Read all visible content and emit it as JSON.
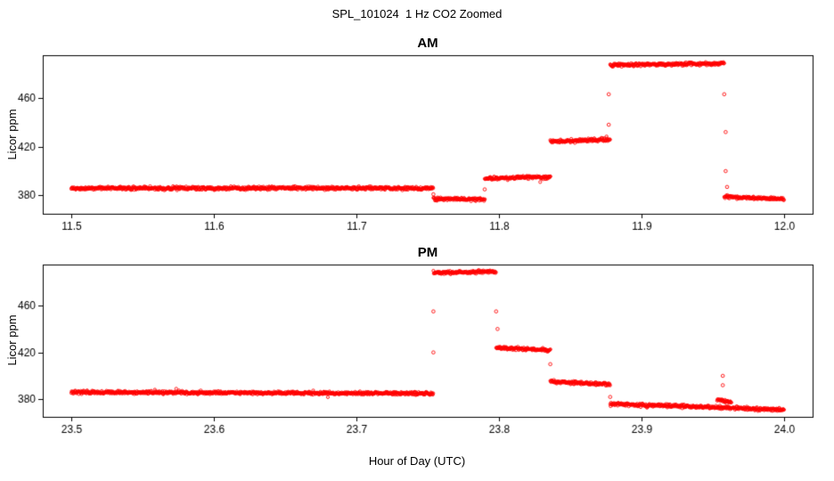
{
  "title": "SPL_101024  1 Hz CO2 Zoomed",
  "xlabel": "Hour of Day (UTC)",
  "ylabel": "Licor ppm",
  "chart_data": [
    {
      "type": "scatter",
      "panel": "AM",
      "title": "AM",
      "ylabel": "Licor ppm",
      "point_color": "#ff0000",
      "point_style": "open-circle",
      "sample_rate_hz": 1,
      "xlim": [
        11.48,
        12.02
      ],
      "ylim": [
        365,
        495
      ],
      "xticks": [
        11.5,
        11.6,
        11.7,
        11.8,
        11.9,
        12.0
      ],
      "xtick_labels": [
        "11.5",
        "11.6",
        "11.7",
        "11.8",
        "11.9",
        "12.0"
      ],
      "yticks": [
        380,
        420,
        460
      ],
      "ytick_labels": [
        "380",
        "420",
        "460"
      ],
      "grid": false,
      "segments": [
        {
          "x0": 11.5,
          "x1": 11.754,
          "y0": 386,
          "y1": 386
        },
        {
          "x0": 11.754,
          "x1": 11.79,
          "y0": 377,
          "y1": 377
        },
        {
          "x0": 11.79,
          "x1": 11.836,
          "y0": 394,
          "y1": 395
        },
        {
          "x0": 11.836,
          "x1": 11.878,
          "y0": 424,
          "y1": 426
        },
        {
          "x0": 11.878,
          "x1": 11.958,
          "y0": 487,
          "y1": 488
        },
        {
          "x0": 11.958,
          "x1": 12.0,
          "y0": 379,
          "y1": 377
        }
      ],
      "extra_points": [
        [
          11.754,
          381
        ],
        [
          11.79,
          385
        ],
        [
          11.877,
          438
        ],
        [
          11.877,
          463
        ],
        [
          11.958,
          463
        ],
        [
          11.959,
          432
        ],
        [
          11.959,
          400
        ],
        [
          11.96,
          387
        ]
      ]
    },
    {
      "type": "scatter",
      "panel": "PM",
      "title": "PM",
      "ylabel": "Licor ppm",
      "point_color": "#ff0000",
      "point_style": "open-circle",
      "sample_rate_hz": 1,
      "xlim": [
        23.48,
        24.02
      ],
      "ylim": [
        365,
        495
      ],
      "xticks": [
        23.5,
        23.6,
        23.7,
        23.8,
        23.9,
        24.0
      ],
      "xtick_labels": [
        "23.5",
        "23.6",
        "23.7",
        "23.8",
        "23.9",
        "24.0"
      ],
      "yticks": [
        380,
        420,
        460
      ],
      "ytick_labels": [
        "380",
        "420",
        "460"
      ],
      "grid": false,
      "segments": [
        {
          "x0": 23.5,
          "x1": 23.754,
          "y0": 386,
          "y1": 385
        },
        {
          "x0": 23.754,
          "x1": 23.798,
          "y0": 488,
          "y1": 489
        },
        {
          "x0": 23.798,
          "x1": 23.836,
          "y0": 424,
          "y1": 422
        },
        {
          "x0": 23.836,
          "x1": 23.878,
          "y0": 395,
          "y1": 393
        },
        {
          "x0": 23.878,
          "x1": 24.0,
          "y0": 376,
          "y1": 371
        },
        {
          "x0": 23.953,
          "x1": 23.963,
          "y0": 380,
          "y1": 377
        }
      ],
      "extra_points": [
        [
          23.754,
          420
        ],
        [
          23.754,
          455
        ],
        [
          23.798,
          455
        ],
        [
          23.799,
          440
        ],
        [
          23.836,
          410
        ],
        [
          23.878,
          382
        ],
        [
          23.957,
          400
        ],
        [
          23.957,
          392
        ]
      ]
    }
  ]
}
